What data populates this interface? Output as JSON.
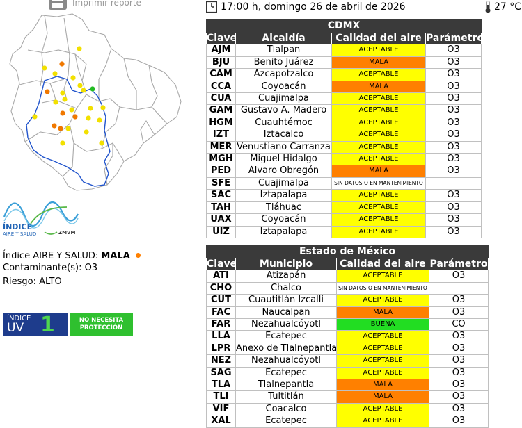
{
  "header": {
    "print_label": "Imprimir reporte",
    "datetime": "17:00 h, domingo 26 de abril de 2026",
    "temperature": "27 °C"
  },
  "logo": {
    "title": "ÍNDICE",
    "subtitle": "AIRE Y SALUD",
    "region": "ZMVM"
  },
  "air_index": {
    "label": "Índice AIRE Y SALUD:",
    "value": "MALA",
    "indicator_color": "#ff8000",
    "pollutant_label": "Contaminante(s):",
    "pollutant": "O3",
    "risk_label": "Riesgo:",
    "risk": "ALTO"
  },
  "uv": {
    "label_small": "ÍNDICE",
    "label_big": "UV",
    "value": "1",
    "status_line1": "NO NECESITA",
    "status_line2": "PROTECCIÓN"
  },
  "colors": {
    "ACEPTABLE": "#ffff00",
    "MALA": "#ff8000",
    "BUENA": "#22dd22",
    "header": "#3a3a3a"
  },
  "cdmx": {
    "title": "CDMX",
    "headers": [
      "Clave",
      "Alcaldía",
      "Calidad del aire",
      "Parámetro"
    ],
    "rows": [
      {
        "clave": "AJM",
        "name": "Tlalpan",
        "quality": "ACEPTABLE",
        "param": "O3"
      },
      {
        "clave": "BJU",
        "name": "Benito Juárez",
        "quality": "MALA",
        "param": "O3"
      },
      {
        "clave": "CAM",
        "name": "Azcapotzalco",
        "quality": "ACEPTABLE",
        "param": "O3"
      },
      {
        "clave": "CCA",
        "name": "Coyoacán",
        "quality": "MALA",
        "param": "O3"
      },
      {
        "clave": "CUA",
        "name": "Cuajimalpa",
        "quality": "ACEPTABLE",
        "param": "O3"
      },
      {
        "clave": "GAM",
        "name": "Gustavo A. Madero",
        "quality": "ACEPTABLE",
        "param": "O3"
      },
      {
        "clave": "HGM",
        "name": "Cuauhtémoc",
        "quality": "ACEPTABLE",
        "param": "O3"
      },
      {
        "clave": "IZT",
        "name": "Iztacalco",
        "quality": "ACEPTABLE",
        "param": "O3"
      },
      {
        "clave": "MER",
        "name": "Venustiano Carranza",
        "quality": "ACEPTABLE",
        "param": "O3"
      },
      {
        "clave": "MGH",
        "name": "Miguel Hidalgo",
        "quality": "ACEPTABLE",
        "param": "O3"
      },
      {
        "clave": "PED",
        "name": "Álvaro Obregón",
        "quality": "MALA",
        "param": "O3"
      },
      {
        "clave": "SFE",
        "name": "Cuajimalpa",
        "quality": "SIN DATOS O EN MANTENIMIENTO",
        "param": ""
      },
      {
        "clave": "SAC",
        "name": "Iztapalapa",
        "quality": "ACEPTABLE",
        "param": "O3"
      },
      {
        "clave": "TAH",
        "name": "Tláhuac",
        "quality": "ACEPTABLE",
        "param": "O3"
      },
      {
        "clave": "UAX",
        "name": "Coyoacán",
        "quality": "ACEPTABLE",
        "param": "O3"
      },
      {
        "clave": "UIZ",
        "name": "Iztapalapa",
        "quality": "ACEPTABLE",
        "param": "O3"
      }
    ]
  },
  "edomex": {
    "title": "Estado de México",
    "headers": [
      "Clave",
      "Municipio",
      "Calidad del aire",
      "Parámetro"
    ],
    "rows": [
      {
        "clave": "ATI",
        "name": "Atizapán",
        "quality": "ACEPTABLE",
        "param": "O3"
      },
      {
        "clave": "CHO",
        "name": "Chalco",
        "quality": "SIN DATOS O EN MANTENIMIENTO",
        "param": ""
      },
      {
        "clave": "CUT",
        "name": "Cuautitlán Izcalli",
        "quality": "ACEPTABLE",
        "param": "O3"
      },
      {
        "clave": "FAC",
        "name": "Naucalpan",
        "quality": "MALA",
        "param": "O3"
      },
      {
        "clave": "FAR",
        "name": "Nezahualcóyotl",
        "quality": "BUENA",
        "param": "CO"
      },
      {
        "clave": "LLA",
        "name": "Ecatepec",
        "quality": "ACEPTABLE",
        "param": "O3"
      },
      {
        "clave": "LPR",
        "name": "Anexo de Tlalnepantla",
        "quality": "ACEPTABLE",
        "param": "O3"
      },
      {
        "clave": "NEZ",
        "name": "Nezahualcóyotl",
        "quality": "ACEPTABLE",
        "param": "O3"
      },
      {
        "clave": "SAG",
        "name": "Ecatepec",
        "quality": "ACEPTABLE",
        "param": "O3"
      },
      {
        "clave": "TLA",
        "name": "Tlalnepantla",
        "quality": "MALA",
        "param": "O3"
      },
      {
        "clave": "TLI",
        "name": "Tultitlán",
        "quality": "MALA",
        "param": "O3"
      },
      {
        "clave": "VIF",
        "name": "Coacalco",
        "quality": "ACEPTABLE",
        "param": "O3"
      },
      {
        "clave": "XAL",
        "name": "Ecatepec",
        "quality": "ACEPTABLE",
        "param": "O3"
      }
    ]
  }
}
